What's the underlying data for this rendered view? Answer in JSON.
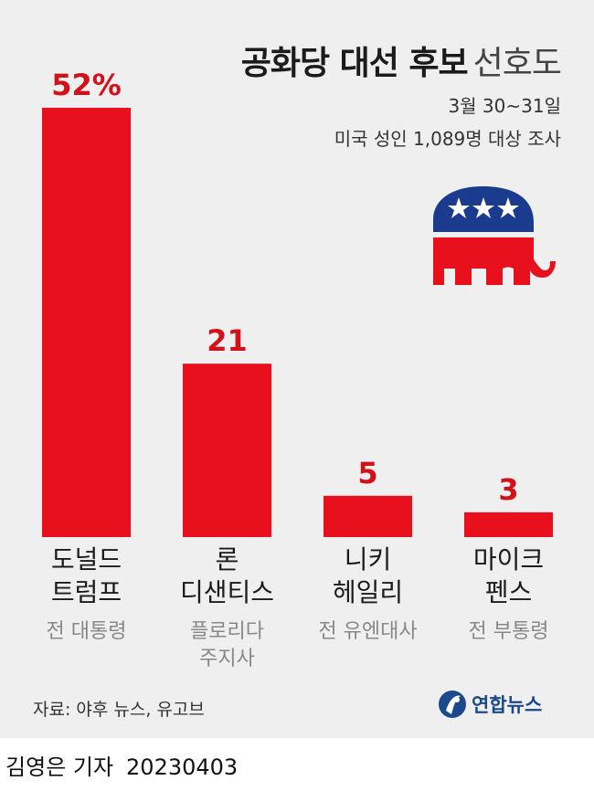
{
  "header": {
    "title_bold": "공화당 대선 후보",
    "title_light": "선호도",
    "date_range": "3월 30~31일",
    "survey_info": "미국 성인 1,089명 대상 조사"
  },
  "chart_data": {
    "type": "bar",
    "categories": [
      {
        "name": [
          "도널드",
          "트럼프"
        ],
        "role": [
          "전 대통령"
        ]
      },
      {
        "name": [
          "론",
          "디샌티스"
        ],
        "role": [
          "플로리다",
          "주지사"
        ]
      },
      {
        "name": [
          "니키",
          "헤일리"
        ],
        "role": [
          "전 유엔대사"
        ]
      },
      {
        "name": [
          "마이크",
          "펜스"
        ],
        "role": [
          "전 부통령"
        ]
      }
    ],
    "values": [
      52,
      21,
      5,
      3
    ],
    "value_labels": [
      "52%",
      "21",
      "5",
      "3"
    ],
    "ylim": [
      0,
      52
    ],
    "bar_color": "#e8101c",
    "label_color": "#d2111b",
    "grid": false
  },
  "source": "자료: 야후 뉴스, 유고브",
  "brand": {
    "name": "연합뉴스",
    "color": "#1a4a8c"
  },
  "footer": {
    "reporter": "김영은 기자",
    "date": "20230403"
  },
  "logo": {
    "name": "republican-elephant-icon",
    "blue": "#1b3b8f",
    "red": "#e8101c"
  }
}
